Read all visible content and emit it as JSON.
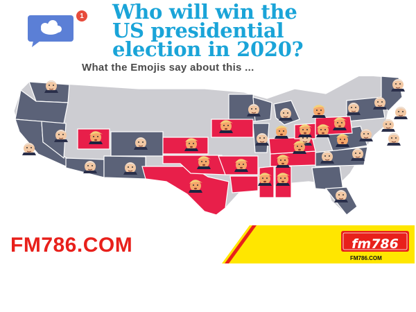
{
  "header": {
    "notification_count": "1",
    "title_lines": [
      "Who will win the",
      "US presidential",
      "election in 2020?"
    ],
    "subtitle": "What the Emojis say about this ..."
  },
  "map": {
    "emoji_legend": {
      "biden": "biden-face-icon",
      "trump": "trump-face-icon"
    },
    "colors": {
      "red_state": "#e81f4a",
      "blue_state": "#5b6278",
      "neutral_state": "#cdcdd2",
      "border": "#ffffff"
    }
  },
  "brand": {
    "name": "FM786.COM",
    "logo_text": "fm786",
    "logo_url": "FM786.COM",
    "colors": {
      "red": "#e8201b",
      "yellow": "#ffe600"
    }
  }
}
